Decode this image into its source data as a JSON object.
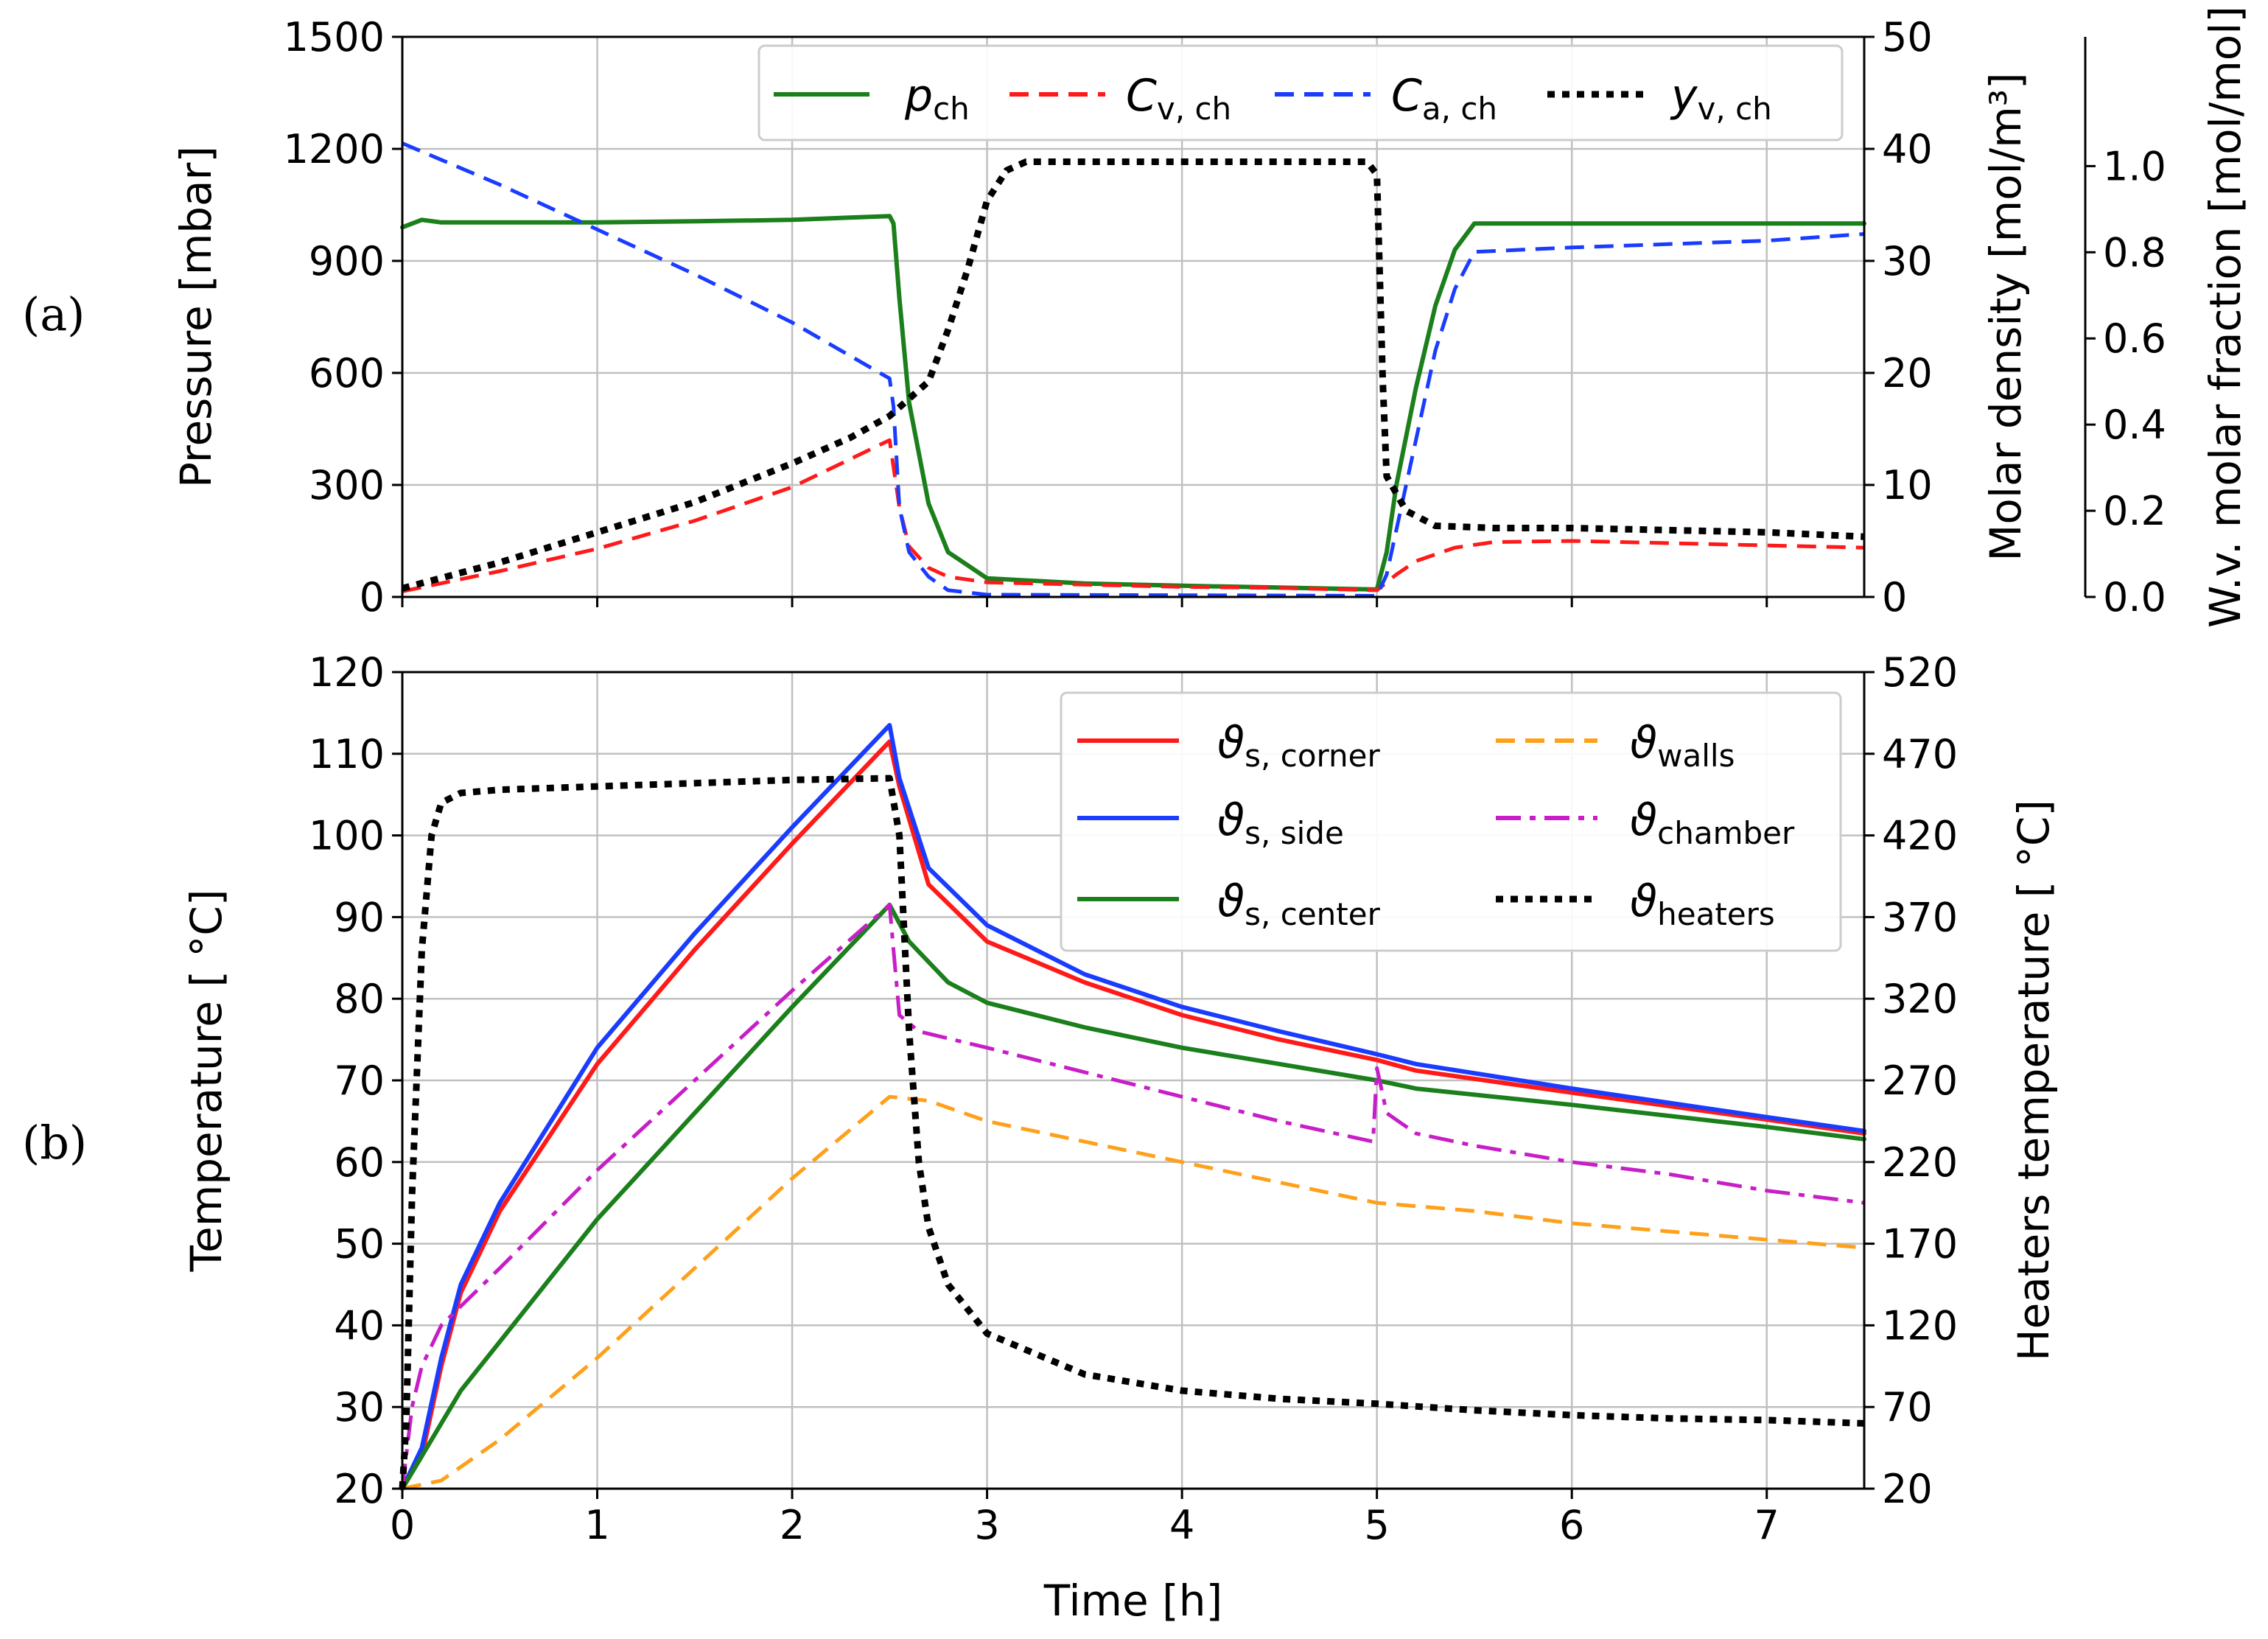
{
  "figure": {
    "panel_labels": {
      "a": "(a)",
      "b": "(b)"
    },
    "x_axis_label": "Time [h]"
  },
  "colors": {
    "green": "#1b7f1b",
    "red": "#ff1a1a",
    "blue": "#1a3cff",
    "black": "#000000",
    "orange": "#ffa01a",
    "magenta": "#c71ec7",
    "grid": "#c0c0c0"
  },
  "chart_data": [
    {
      "id": "a",
      "type": "line",
      "xlim": [
        0,
        7.5
      ],
      "x_ticks": [
        "0",
        "1",
        "2",
        "3",
        "4",
        "5",
        "6",
        "7"
      ],
      "grid": true,
      "legend_position": "top-right",
      "y_axes": {
        "left": {
          "label": "Pressure [mbar]",
          "lim": [
            0,
            1500
          ],
          "ticks": [
            "0",
            "300",
            "600",
            "900",
            "1200",
            "1500"
          ]
        },
        "right1": {
          "label": "Molar density [mol/m³]",
          "lim": [
            0,
            50
          ],
          "ticks": [
            "0",
            "10",
            "20",
            "30",
            "40",
            "50"
          ]
        },
        "right2": {
          "label": "W.v. molar fraction [mol/mol]",
          "lim": [
            0,
            1.3
          ],
          "ticks": [
            "0.0",
            "0.2",
            "0.4",
            "0.6",
            "0.8",
            "1.0"
          ]
        }
      },
      "series": [
        {
          "name": "p",
          "sub": "ch",
          "axis": "left",
          "color": "green",
          "style": "solid",
          "points": [
            [
              0,
              990
            ],
            [
              0.1,
              1010
            ],
            [
              0.2,
              1003
            ],
            [
              0.5,
              1003
            ],
            [
              1,
              1003
            ],
            [
              1.5,
              1006
            ],
            [
              2,
              1010
            ],
            [
              2.5,
              1020
            ],
            [
              2.52,
              1000
            ],
            [
              2.55,
              800
            ],
            [
              2.6,
              520
            ],
            [
              2.7,
              250
            ],
            [
              2.8,
              120
            ],
            [
              3,
              50
            ],
            [
              3.5,
              36
            ],
            [
              4,
              30
            ],
            [
              4.5,
              25
            ],
            [
              5,
              20
            ],
            [
              5.05,
              120
            ],
            [
              5.1,
              300
            ],
            [
              5.2,
              560
            ],
            [
              5.3,
              780
            ],
            [
              5.4,
              930
            ],
            [
              5.5,
              1000
            ],
            [
              6,
              1000
            ],
            [
              7,
              1000
            ],
            [
              7.5,
              1000
            ]
          ]
        },
        {
          "name": "C",
          "sub": "v, ch",
          "axis": "right1",
          "color": "red",
          "style": "dashed",
          "points": [
            [
              0,
              0.5
            ],
            [
              0.5,
              2.3
            ],
            [
              1,
              4.3
            ],
            [
              1.5,
              6.8
            ],
            [
              2,
              9.8
            ],
            [
              2.5,
              14
            ],
            [
              2.55,
              8
            ],
            [
              2.6,
              4.5
            ],
            [
              2.7,
              2.6
            ],
            [
              2.8,
              1.8
            ],
            [
              3,
              1.3
            ],
            [
              3.5,
              1.1
            ],
            [
              4,
              0.9
            ],
            [
              4.5,
              0.8
            ],
            [
              5,
              0.6
            ],
            [
              5.1,
              2
            ],
            [
              5.2,
              3.2
            ],
            [
              5.4,
              4.4
            ],
            [
              5.6,
              4.9
            ],
            [
              6,
              5.0
            ],
            [
              6.5,
              4.8
            ],
            [
              7,
              4.6
            ],
            [
              7.5,
              4.4
            ]
          ]
        },
        {
          "name": "C",
          "sub": "a, ch",
          "axis": "right1",
          "color": "blue",
          "style": "dashed",
          "points": [
            [
              0,
              40.5
            ],
            [
              0.5,
              36.8
            ],
            [
              1,
              32.8
            ],
            [
              1.5,
              28.8
            ],
            [
              2,
              24.5
            ],
            [
              2.5,
              19.5
            ],
            [
              2.52,
              17
            ],
            [
              2.55,
              8
            ],
            [
              2.6,
              4
            ],
            [
              2.7,
              1.8
            ],
            [
              2.8,
              0.6
            ],
            [
              3,
              0.2
            ],
            [
              4,
              0.15
            ],
            [
              5,
              0.1
            ],
            [
              5.05,
              2
            ],
            [
              5.1,
              6
            ],
            [
              5.2,
              14
            ],
            [
              5.3,
              22
            ],
            [
              5.4,
              27.5
            ],
            [
              5.5,
              30.8
            ],
            [
              6,
              31.2
            ],
            [
              7,
              31.8
            ],
            [
              7.5,
              32.4
            ]
          ]
        },
        {
          "name": "y",
          "sub": "v, ch",
          "axis": "right2",
          "color": "black",
          "style": "dotted",
          "points": [
            [
              0,
              0.02
            ],
            [
              0.5,
              0.08
            ],
            [
              1,
              0.15
            ],
            [
              1.5,
              0.22
            ],
            [
              2,
              0.31
            ],
            [
              2.3,
              0.37
            ],
            [
              2.5,
              0.42
            ],
            [
              2.7,
              0.5
            ],
            [
              2.8,
              0.62
            ],
            [
              2.9,
              0.76
            ],
            [
              3,
              0.92
            ],
            [
              3.1,
              0.99
            ],
            [
              3.2,
              1.01
            ],
            [
              3.5,
              1.01
            ],
            [
              4,
              1.01
            ],
            [
              4.5,
              1.01
            ],
            [
              4.95,
              1.01
            ],
            [
              5,
              0.98
            ],
            [
              5.03,
              0.5
            ],
            [
              5.05,
              0.28
            ],
            [
              5.15,
              0.2
            ],
            [
              5.3,
              0.165
            ],
            [
              5.6,
              0.16
            ],
            [
              6,
              0.16
            ],
            [
              7,
              0.15
            ],
            [
              7.5,
              0.14
            ]
          ]
        }
      ]
    },
    {
      "id": "b",
      "type": "line",
      "xlim": [
        0,
        7.5
      ],
      "x_ticks": [
        "0",
        "1",
        "2",
        "3",
        "4",
        "5",
        "6",
        "7"
      ],
      "grid": true,
      "legend_position": "top-right",
      "y_axes": {
        "left": {
          "label": "Temperature [ °C]",
          "lim": [
            20,
            120
          ],
          "ticks": [
            "20",
            "30",
            "40",
            "50",
            "60",
            "70",
            "80",
            "90",
            "100",
            "110",
            "120"
          ]
        },
        "right": {
          "label": "Heaters temperature [ °C]",
          "lim": [
            20,
            520
          ],
          "ticks": [
            "20",
            "70",
            "120",
            "170",
            "220",
            "270",
            "320",
            "370",
            "420",
            "470",
            "520"
          ]
        }
      },
      "series": [
        {
          "name": "ϑ",
          "sub": "s, corner",
          "axis": "left",
          "color": "red",
          "style": "solid",
          "points": [
            [
              0,
              20
            ],
            [
              0.1,
              24
            ],
            [
              0.2,
              35
            ],
            [
              0.3,
              44
            ],
            [
              0.5,
              54
            ],
            [
              1,
              72
            ],
            [
              1.5,
              86
            ],
            [
              2,
              99
            ],
            [
              2.5,
              111.5
            ],
            [
              2.55,
              106
            ],
            [
              2.7,
              94
            ],
            [
              3,
              87
            ],
            [
              3.5,
              82
            ],
            [
              4,
              78
            ],
            [
              4.5,
              75
            ],
            [
              5,
              72.5
            ],
            [
              5.2,
              71.2
            ],
            [
              6,
              68.5
            ],
            [
              7,
              65.2
            ],
            [
              7.5,
              63.5
            ]
          ]
        },
        {
          "name": "ϑ",
          "sub": "s, side",
          "axis": "left",
          "color": "blue",
          "style": "solid",
          "points": [
            [
              0,
              20
            ],
            [
              0.1,
              25
            ],
            [
              0.2,
              36
            ],
            [
              0.3,
              45
            ],
            [
              0.5,
              55
            ],
            [
              1,
              74
            ],
            [
              1.5,
              88
            ],
            [
              2,
              101
            ],
            [
              2.5,
              113.5
            ],
            [
              2.55,
              107
            ],
            [
              2.7,
              96
            ],
            [
              3,
              89
            ],
            [
              3.5,
              83
            ],
            [
              4,
              79
            ],
            [
              4.5,
              76
            ],
            [
              5,
              73.2
            ],
            [
              5.2,
              72
            ],
            [
              6,
              69
            ],
            [
              7,
              65.5
            ],
            [
              7.5,
              63.8
            ]
          ]
        },
        {
          "name": "ϑ",
          "sub": "s, center",
          "axis": "left",
          "color": "green",
          "style": "solid",
          "points": [
            [
              0,
              20
            ],
            [
              0.1,
              24
            ],
            [
              0.3,
              32
            ],
            [
              0.5,
              38
            ],
            [
              1,
              53
            ],
            [
              1.5,
              66
            ],
            [
              2,
              79
            ],
            [
              2.5,
              91.5
            ],
            [
              2.6,
              87
            ],
            [
              2.8,
              82
            ],
            [
              3,
              79.5
            ],
            [
              3.5,
              76.5
            ],
            [
              4,
              74
            ],
            [
              4.5,
              72
            ],
            [
              5,
              70
            ],
            [
              5.2,
              69
            ],
            [
              6,
              67
            ],
            [
              7,
              64.3
            ],
            [
              7.5,
              62.8
            ]
          ]
        },
        {
          "name": "ϑ",
          "sub": "walls",
          "axis": "left",
          "color": "orange",
          "style": "dashed",
          "points": [
            [
              0,
              20
            ],
            [
              0.2,
              21
            ],
            [
              0.5,
              26
            ],
            [
              1,
              36
            ],
            [
              1.5,
              47
            ],
            [
              2,
              58
            ],
            [
              2.5,
              68
            ],
            [
              2.7,
              67.5
            ],
            [
              3,
              65
            ],
            [
              3.5,
              62.5
            ],
            [
              4,
              60
            ],
            [
              4.5,
              57.5
            ],
            [
              5,
              55
            ],
            [
              5.5,
              54
            ],
            [
              6,
              52.5
            ],
            [
              6.5,
              51.5
            ],
            [
              7,
              50.5
            ],
            [
              7.5,
              49.5
            ]
          ]
        },
        {
          "name": "ϑ",
          "sub": "chamber",
          "axis": "left",
          "color": "magenta",
          "style": "dashdot",
          "points": [
            [
              0,
              20
            ],
            [
              0.05,
              30
            ],
            [
              0.1,
              35
            ],
            [
              0.2,
              40
            ],
            [
              0.5,
              47
            ],
            [
              1,
              59
            ],
            [
              1.5,
              70
            ],
            [
              2,
              81
            ],
            [
              2.5,
              91.5
            ],
            [
              2.52,
              86
            ],
            [
              2.55,
              78
            ],
            [
              2.65,
              76
            ],
            [
              3,
              74
            ],
            [
              3.5,
              71
            ],
            [
              4,
              68
            ],
            [
              4.5,
              65
            ],
            [
              4.98,
              62.5
            ],
            [
              5,
              71.5
            ],
            [
              5.05,
              66
            ],
            [
              5.2,
              63.5
            ],
            [
              5.5,
              62
            ],
            [
              6,
              60
            ],
            [
              6.5,
              58.5
            ],
            [
              7,
              56.5
            ],
            [
              7.5,
              55
            ]
          ]
        },
        {
          "name": "ϑ",
          "sub": "heaters",
          "axis": "right",
          "color": "black",
          "style": "dotted",
          "points": [
            [
              0,
              20
            ],
            [
              0.02,
              60
            ],
            [
              0.05,
              200
            ],
            [
              0.1,
              350
            ],
            [
              0.15,
              420
            ],
            [
              0.2,
              440
            ],
            [
              0.3,
              446
            ],
            [
              0.5,
              448
            ],
            [
              1,
              450
            ],
            [
              1.5,
              452
            ],
            [
              2,
              454
            ],
            [
              2.5,
              455
            ],
            [
              2.55,
              420
            ],
            [
              2.6,
              300
            ],
            [
              2.65,
              220
            ],
            [
              2.7,
              180
            ],
            [
              2.8,
              145
            ],
            [
              3,
              115
            ],
            [
              3.5,
              90
            ],
            [
              4,
              80
            ],
            [
              4.5,
              75
            ],
            [
              5,
              72
            ],
            [
              5.5,
              68
            ],
            [
              6,
              65
            ],
            [
              6.5,
              63
            ],
            [
              7,
              62
            ],
            [
              7.5,
              60
            ]
          ]
        }
      ]
    }
  ]
}
